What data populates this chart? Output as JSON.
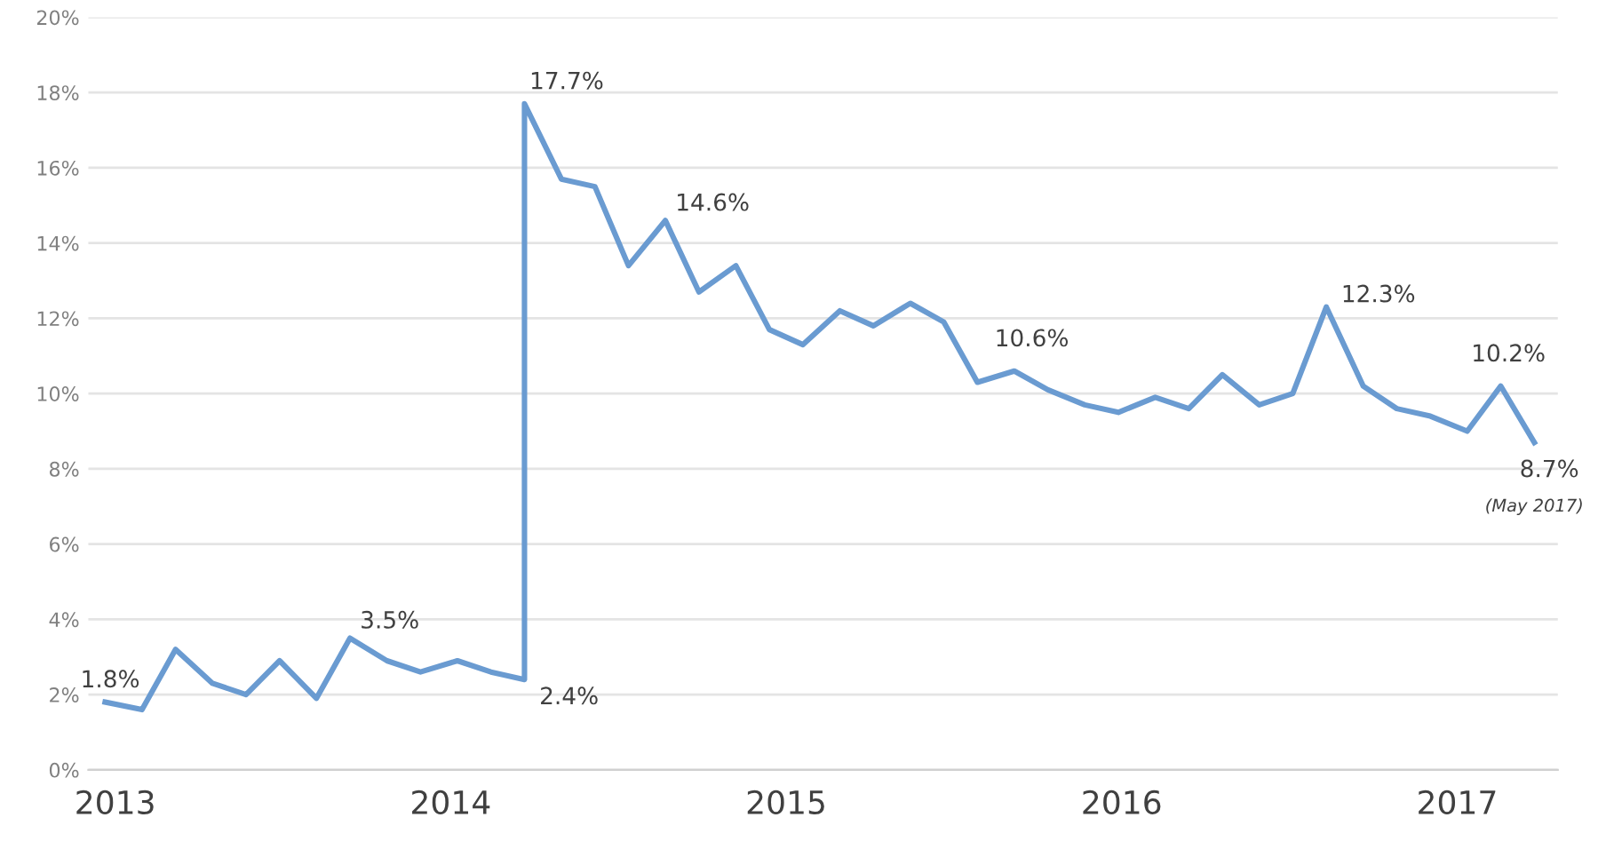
{
  "chart_data": {
    "type": "line",
    "x": [
      2012.97,
      2013.08,
      2013.18,
      2013.29,
      2013.39,
      2013.49,
      2013.6,
      2013.7,
      2013.81,
      2013.91,
      2014.02,
      2014.12,
      2014.22,
      2014.22,
      2014.33,
      2014.43,
      2014.53,
      2014.64,
      2014.74,
      2014.85,
      2014.95,
      2015.05,
      2015.16,
      2015.26,
      2015.37,
      2015.47,
      2015.57,
      2015.68,
      2015.78,
      2015.89,
      2015.99,
      2016.1,
      2016.2,
      2016.3,
      2016.41,
      2016.51,
      2016.61,
      2016.72,
      2016.82,
      2016.92,
      2017.03,
      2017.13,
      2017.23
    ],
    "series": [
      {
        "color": "#6a9bd1",
        "values": [
          1.8,
          1.6,
          3.2,
          2.3,
          2.0,
          2.9,
          1.9,
          3.5,
          2.9,
          2.6,
          2.9,
          2.6,
          2.4,
          17.7,
          15.7,
          15.5,
          13.4,
          14.6,
          12.7,
          13.4,
          11.7,
          11.3,
          12.2,
          11.8,
          12.4,
          11.9,
          10.3,
          10.6,
          10.1,
          9.7,
          9.5,
          9.9,
          9.6,
          10.5,
          9.7,
          10.0,
          12.3,
          10.2,
          9.6,
          9.4,
          9.0,
          10.2,
          8.7
        ]
      }
    ],
    "xlim": [
      2012.92,
      2017.3
    ],
    "xticks": [
      2013,
      2014,
      2015,
      2016,
      2017
    ],
    "ylim": [
      0,
      20
    ],
    "yticks": [
      {
        "value": 0,
        "label": "0%"
      },
      {
        "value": 2,
        "label": "2%"
      },
      {
        "value": 4,
        "label": "4%"
      },
      {
        "value": 6,
        "label": "6%"
      },
      {
        "value": 8,
        "label": "8%"
      },
      {
        "value": 10,
        "label": "10%"
      },
      {
        "value": 12,
        "label": "12%"
      },
      {
        "value": 14,
        "label": "14%"
      },
      {
        "value": 16,
        "label": "16%"
      },
      {
        "value": 18,
        "label": "18%"
      },
      {
        "value": 20,
        "label": "20%"
      }
    ],
    "grid": "y",
    "marker": "none",
    "line_style": "solid",
    "annotations": [
      {
        "text": "1.8%",
        "x": 2012.97,
        "y": 1.8
      },
      {
        "text": "3.5%",
        "x": 2013.7,
        "y": 3.5
      },
      {
        "text": "2.4%",
        "x": 2014.22,
        "y": 2.4
      },
      {
        "text": "17.7%",
        "x": 2014.22,
        "y": 17.7
      },
      {
        "text": "14.6%",
        "x": 2014.64,
        "y": 14.6
      },
      {
        "text": "10.6%",
        "x": 2015.68,
        "y": 10.6
      },
      {
        "text": "12.3%",
        "x": 2016.61,
        "y": 12.3
      },
      {
        "text": "10.2%",
        "x": 2017.13,
        "y": 10.2
      },
      {
        "text": "8.7%",
        "x": 2017.23,
        "y": 8.7
      },
      "(May 2017)"
    ]
  }
}
